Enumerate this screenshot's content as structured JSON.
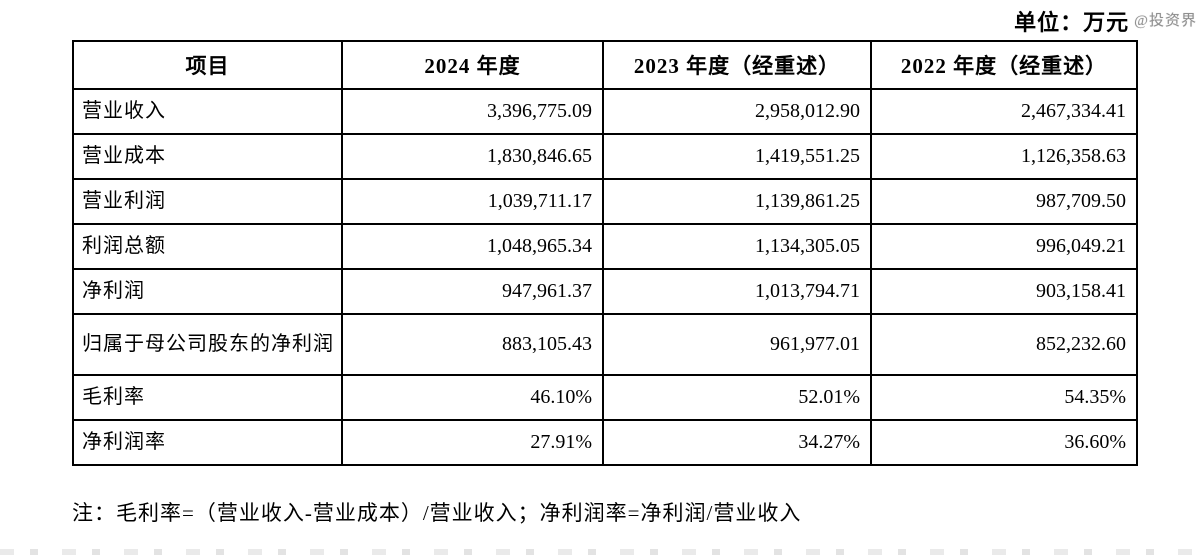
{
  "page": {
    "unit_label": "单位：万元",
    "watermark": "@投资界",
    "footnote": "注：毛利率=（营业收入-营业成本）/营业收入；净利润率=净利润/营业收入"
  },
  "table": {
    "headers": [
      "项目",
      "2024 年度",
      "2023 年度（经重述）",
      "2022 年度（经重述）"
    ],
    "rows": [
      {
        "label": "营业收入",
        "values": [
          "3,396,775.09",
          "2,958,012.90",
          "2,467,334.41"
        ]
      },
      {
        "label": "营业成本",
        "values": [
          "1,830,846.65",
          "1,419,551.25",
          "1,126,358.63"
        ]
      },
      {
        "label": "营业利润",
        "values": [
          "1,039,711.17",
          "1,139,861.25",
          "987,709.50"
        ]
      },
      {
        "label": "利润总额",
        "values": [
          "1,048,965.34",
          "1,134,305.05",
          "996,049.21"
        ]
      },
      {
        "label": "净利润",
        "values": [
          "947,961.37",
          "1,013,794.71",
          "903,158.41"
        ]
      },
      {
        "label": "归属于母公司股东的净利润",
        "values": [
          "883,105.43",
          "961,977.01",
          "852,232.60"
        ]
      },
      {
        "label": "毛利率",
        "values": [
          "46.10%",
          "52.01%",
          "54.35%"
        ]
      },
      {
        "label": "净利润率",
        "values": [
          "27.91%",
          "34.27%",
          "36.60%"
        ]
      }
    ]
  }
}
